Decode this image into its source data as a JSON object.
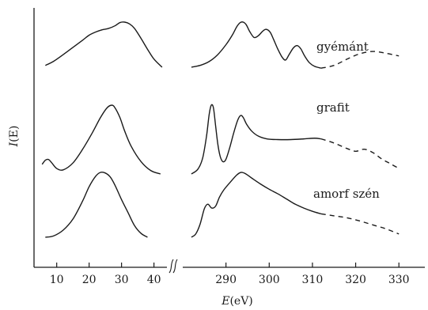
{
  "chart_data": {
    "type": "line",
    "title": "",
    "xlabel_var": "E",
    "xlabel_unit": "(eV)",
    "ylabel_var": "I",
    "ylabel_paren": "(E)",
    "grid": false,
    "x_axis_break": true,
    "panels": [
      {
        "name": "low-energy",
        "xlim": [
          3,
          44
        ],
        "ticks": [
          10,
          20,
          30,
          40
        ],
        "tick_labels": [
          "10",
          "20",
          "30",
          "40"
        ]
      },
      {
        "name": "core-edge",
        "xlim": [
          280,
          336
        ],
        "ticks": [
          290,
          300,
          310,
          320,
          330
        ],
        "tick_labels": [
          "290",
          "300",
          "310",
          "320",
          "330"
        ]
      }
    ],
    "series": [
      {
        "name": "gyémánt",
        "row": 0,
        "label": "gyémánt",
        "low": {
          "x": [
            6.5,
            9,
            12,
            15,
            18,
            20,
            22,
            24,
            26,
            28,
            29.5,
            31,
            32.5,
            34,
            36,
            38,
            40,
            42.5
          ],
          "y": [
            0.04,
            0.13,
            0.28,
            0.44,
            0.6,
            0.71,
            0.78,
            0.83,
            0.86,
            0.92,
            0.99,
            1.0,
            0.96,
            0.86,
            0.64,
            0.4,
            0.18,
            0.0
          ]
        },
        "core": {
          "x": [
            282,
            284,
            286,
            288,
            290,
            291.5,
            292.5,
            293.3,
            294,
            294.7,
            295.5,
            296.5,
            297.5,
            298.5,
            299.3,
            300.2,
            301,
            302,
            303,
            303.8,
            304.6,
            305.6,
            306.5,
            307.3,
            308.2,
            309.3,
            310.5,
            312
          ],
          "y": [
            0.0,
            0.04,
            0.12,
            0.27,
            0.5,
            0.72,
            0.9,
            0.99,
            1.0,
            0.94,
            0.79,
            0.66,
            0.7,
            0.8,
            0.84,
            0.78,
            0.62,
            0.4,
            0.22,
            0.16,
            0.28,
            0.43,
            0.48,
            0.41,
            0.25,
            0.1,
            0.02,
            -0.02
          ]
        },
        "tail": {
          "x": [
            312,
            315,
            318,
            321,
            324,
            327,
            330
          ],
          "y": [
            -0.02,
            0.04,
            0.18,
            0.3,
            0.35,
            0.31,
            0.25
          ]
        }
      },
      {
        "name": "grafit",
        "row": 1,
        "label": "grafit",
        "low": {
          "x": [
            5.5,
            6.5,
            7.5,
            8.5,
            10,
            12,
            15,
            18,
            21,
            23.5,
            25.5,
            27,
            28,
            29.5,
            31,
            33,
            36,
            39,
            42
          ],
          "y": [
            0.14,
            0.2,
            0.21,
            0.16,
            0.08,
            0.06,
            0.16,
            0.36,
            0.6,
            0.82,
            0.96,
            1.0,
            0.96,
            0.82,
            0.62,
            0.4,
            0.18,
            0.05,
            0.0
          ]
        },
        "core": {
          "x": [
            282,
            283.5,
            284.6,
            285.5,
            286.1,
            286.6,
            287.1,
            287.6,
            288.1,
            288.6,
            289.1,
            289.6,
            290.1,
            290.9,
            291.8,
            292.7,
            293.4,
            294,
            294.8,
            296,
            297.5,
            299.5,
            302,
            305,
            308,
            310.5,
            312
          ],
          "y": [
            0.0,
            0.07,
            0.23,
            0.55,
            0.86,
            1.0,
            0.96,
            0.7,
            0.44,
            0.27,
            0.19,
            0.18,
            0.23,
            0.39,
            0.6,
            0.78,
            0.85,
            0.82,
            0.72,
            0.62,
            0.55,
            0.51,
            0.5,
            0.5,
            0.51,
            0.52,
            0.51
          ]
        },
        "tail": {
          "x": [
            312,
            315,
            318,
            320,
            322,
            324,
            326,
            328,
            330
          ],
          "y": [
            0.51,
            0.45,
            0.37,
            0.33,
            0.36,
            0.31,
            0.22,
            0.15,
            0.08
          ]
        }
      },
      {
        "name": "amorf szén",
        "row": 2,
        "label": "amorf szén",
        "low": {
          "x": [
            6.5,
            9,
            12,
            15,
            18,
            20,
            22,
            23.5,
            25,
            26.5,
            28,
            30,
            32,
            34,
            36,
            38
          ],
          "y": [
            0.0,
            0.02,
            0.11,
            0.28,
            0.56,
            0.78,
            0.94,
            1.0,
            0.99,
            0.93,
            0.8,
            0.58,
            0.38,
            0.18,
            0.06,
            0.0
          ]
        },
        "core": {
          "x": [
            282,
            283,
            284,
            285,
            285.8,
            286.7,
            287.6,
            288.5,
            289.5,
            291,
            292.5,
            293.5,
            294.5,
            296,
            298,
            300,
            302,
            304,
            306,
            308,
            310,
            312
          ],
          "y": [
            0.0,
            0.05,
            0.2,
            0.44,
            0.51,
            0.45,
            0.48,
            0.62,
            0.73,
            0.85,
            0.96,
            1.0,
            0.98,
            0.91,
            0.82,
            0.74,
            0.67,
            0.59,
            0.51,
            0.45,
            0.4,
            0.36
          ]
        },
        "tail": {
          "x": [
            312,
            315,
            318,
            321,
            324,
            327,
            330
          ],
          "y": [
            0.36,
            0.33,
            0.3,
            0.25,
            0.19,
            0.13,
            0.05
          ]
        }
      }
    ]
  }
}
